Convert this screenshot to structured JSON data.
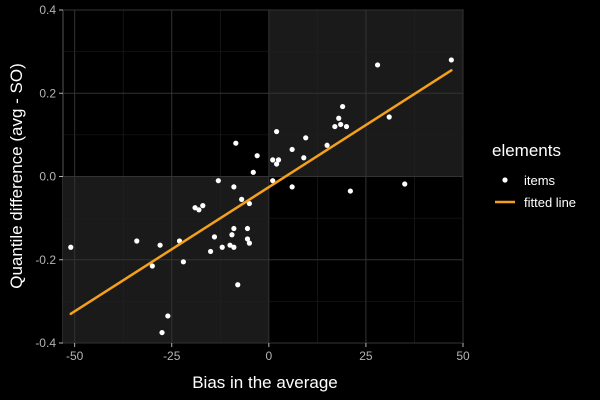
{
  "chart_data": {
    "type": "scatter",
    "title": "",
    "xlabel": "Bias in the average",
    "ylabel": "Quantile difference (avg - SO)",
    "xlim": [
      -53,
      50
    ],
    "ylim": [
      -0.4,
      0.4
    ],
    "x_ticks": [
      -50,
      -25,
      0,
      25,
      50
    ],
    "x_tick_labels": [
      "-50",
      "-25",
      "0",
      "25",
      "50"
    ],
    "y_ticks": [
      -0.4,
      -0.2,
      0.0,
      0.2,
      0.4
    ],
    "y_tick_labels": [
      "-0.4",
      "-0.2",
      "0.0",
      "0.2",
      "0.4"
    ],
    "grid": true,
    "shaded_quadrants": [
      "top-right",
      "bottom-left"
    ],
    "legend": {
      "title": "elements",
      "position": "right",
      "entries": [
        {
          "label": "items",
          "kind": "point",
          "color": "#ffffff"
        },
        {
          "label": "fitted line",
          "kind": "line",
          "color": "#f5a01a"
        }
      ]
    },
    "series": [
      {
        "name": "items",
        "color": "#ffffff",
        "points": [
          [
            -51,
            -0.17
          ],
          [
            -34,
            -0.155
          ],
          [
            -30,
            -0.215
          ],
          [
            -28,
            -0.165
          ],
          [
            -26,
            -0.335
          ],
          [
            -27.5,
            -0.375
          ],
          [
            -23,
            -0.155
          ],
          [
            -22,
            -0.205
          ],
          [
            -19,
            -0.075
          ],
          [
            -18,
            -0.08
          ],
          [
            -17,
            -0.07
          ],
          [
            -15,
            -0.18
          ],
          [
            -14,
            -0.145
          ],
          [
            -13,
            -0.01
          ],
          [
            -12,
            -0.17
          ],
          [
            -10,
            -0.165
          ],
          [
            -9.5,
            -0.14
          ],
          [
            -9,
            -0.125
          ],
          [
            -9,
            -0.17
          ],
          [
            -9,
            -0.025
          ],
          [
            -8.5,
            0.08
          ],
          [
            -8,
            -0.26
          ],
          [
            -7,
            -0.055
          ],
          [
            -5.5,
            -0.125
          ],
          [
            -5.5,
            -0.15
          ],
          [
            -5,
            -0.065
          ],
          [
            -5,
            -0.16
          ],
          [
            -4,
            0.01
          ],
          [
            -3,
            0.05
          ],
          [
            1,
            -0.01
          ],
          [
            1,
            0.04
          ],
          [
            2,
            0.108
          ],
          [
            2,
            0.03
          ],
          [
            2.5,
            0.04
          ],
          [
            6,
            0.065
          ],
          [
            6,
            -0.025
          ],
          [
            9,
            0.045
          ],
          [
            9.5,
            0.093
          ],
          [
            15,
            0.075
          ],
          [
            17,
            0.12
          ],
          [
            18,
            0.14
          ],
          [
            18.5,
            0.125
          ],
          [
            19,
            0.168
          ],
          [
            20,
            0.12
          ],
          [
            21,
            -0.035
          ],
          [
            28,
            0.268
          ],
          [
            31,
            0.143
          ],
          [
            35,
            -0.018
          ],
          [
            47,
            0.28
          ]
        ]
      },
      {
        "name": "fitted line",
        "color": "#f5a01a",
        "x": [
          -51,
          47
        ],
        "y": [
          -0.33,
          0.255
        ]
      }
    ]
  }
}
